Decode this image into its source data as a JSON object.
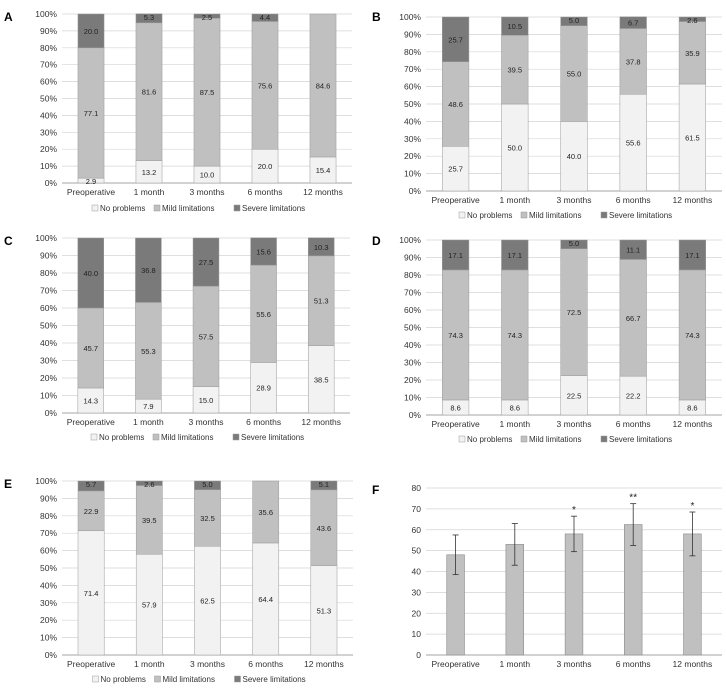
{
  "colors": {
    "no_problems": "#f2f2f2",
    "mild": "#c0c0c0",
    "severe": "#7a7a7a",
    "bar_f": "#c0c0c0",
    "grid": "#d4d4d4",
    "axis": "#888888"
  },
  "chart_data": [
    {
      "type": "bar",
      "stacked": true,
      "panel": "A",
      "ylim": [
        0,
        100
      ],
      "ytick_suffix": "%",
      "categories": [
        "Preoperative",
        "1 month",
        "3 months",
        "6 months",
        "12 months"
      ],
      "series": [
        {
          "name": "No problems",
          "values": [
            2.9,
            13.2,
            10.0,
            20.0,
            15.4
          ]
        },
        {
          "name": "Mild limitations",
          "values": [
            77.1,
            81.6,
            87.5,
            75.6,
            84.6
          ]
        },
        {
          "name": "Severe limitations",
          "values": [
            20.0,
            5.3,
            2.5,
            4.4,
            0
          ]
        }
      ],
      "legend": [
        "No problems",
        "Mild limitations",
        "Severe limitations"
      ],
      "legend_position": "bottom"
    },
    {
      "type": "bar",
      "stacked": true,
      "panel": "B",
      "ylim": [
        0,
        100
      ],
      "ytick_suffix": "%",
      "categories": [
        "Preoperative",
        "1 month",
        "3 months",
        "6 months",
        "12 months"
      ],
      "series": [
        {
          "name": "No problems",
          "values": [
            25.7,
            50.0,
            40.0,
            55.6,
            61.5
          ]
        },
        {
          "name": "Mild limitations",
          "values": [
            48.6,
            39.5,
            55.0,
            37.8,
            35.9
          ]
        },
        {
          "name": "Severe limitations",
          "values": [
            25.7,
            10.5,
            5.0,
            6.7,
            2.6
          ]
        }
      ],
      "legend": [
        "No problems",
        "Mild limitations",
        "Severe limitations"
      ],
      "legend_position": "bottom"
    },
    {
      "type": "bar",
      "stacked": true,
      "panel": "C",
      "ylim": [
        0,
        100
      ],
      "ytick_suffix": "%",
      "categories": [
        "Preoperative",
        "1 month",
        "3 months",
        "6 months",
        "12 months"
      ],
      "series": [
        {
          "name": "No problems",
          "values": [
            14.3,
            7.9,
            15.0,
            28.9,
            38.5
          ]
        },
        {
          "name": "Mild limitations",
          "values": [
            45.7,
            55.3,
            57.5,
            55.6,
            51.3
          ]
        },
        {
          "name": "Severe limitations",
          "values": [
            40.0,
            36.8,
            27.5,
            15.6,
            10.3
          ]
        }
      ],
      "legend": [
        "No problems",
        "Mild limitations",
        "Severe limitations"
      ],
      "legend_position": "bottom"
    },
    {
      "type": "bar",
      "stacked": true,
      "panel": "D",
      "ylim": [
        0,
        100
      ],
      "ytick_suffix": "%",
      "categories": [
        "Preoperative",
        "1 month",
        "3 months",
        "6 months",
        "12 months"
      ],
      "series": [
        {
          "name": "No problems",
          "values": [
            8.6,
            8.6,
            22.5,
            22.2,
            8.6
          ]
        },
        {
          "name": "Mild limitations",
          "values": [
            74.3,
            74.3,
            72.5,
            66.7,
            74.3
          ]
        },
        {
          "name": "Severe limitations",
          "values": [
            17.1,
            17.1,
            5.0,
            11.1,
            17.1
          ]
        }
      ],
      "legend": [
        "No problems",
        "Mild limitations",
        "Severe limitations"
      ],
      "legend_position": "bottom"
    },
    {
      "type": "bar",
      "stacked": true,
      "panel": "E",
      "ylim": [
        0,
        100
      ],
      "ytick_suffix": "%",
      "categories": [
        "Preoperative",
        "1 month",
        "3 months",
        "6 months",
        "12 months"
      ],
      "series": [
        {
          "name": "No problems",
          "values": [
            71.4,
            57.9,
            62.5,
            64.4,
            51.3
          ]
        },
        {
          "name": "Mild limitations",
          "values": [
            22.9,
            39.5,
            32.5,
            35.6,
            43.6
          ]
        },
        {
          "name": "Severe limitations",
          "values": [
            5.7,
            2.6,
            5.0,
            0,
            5.1
          ]
        }
      ],
      "legend": [
        "No problems",
        "Mild limitations",
        "Severe limitations"
      ],
      "legend_position": "bottom"
    },
    {
      "type": "bar",
      "stacked": false,
      "panel": "F",
      "ylim": [
        0,
        80
      ],
      "ytick_step": 10,
      "ytick_suffix": "",
      "categories": [
        "Preoperative",
        "1 month",
        "3 months",
        "6 months",
        "12 months"
      ],
      "values": [
        48,
        53,
        58,
        62.5,
        58
      ],
      "errors": [
        9.5,
        10,
        8.5,
        10,
        10.5
      ],
      "significance": [
        "",
        "",
        "*",
        "**",
        "*"
      ]
    }
  ]
}
